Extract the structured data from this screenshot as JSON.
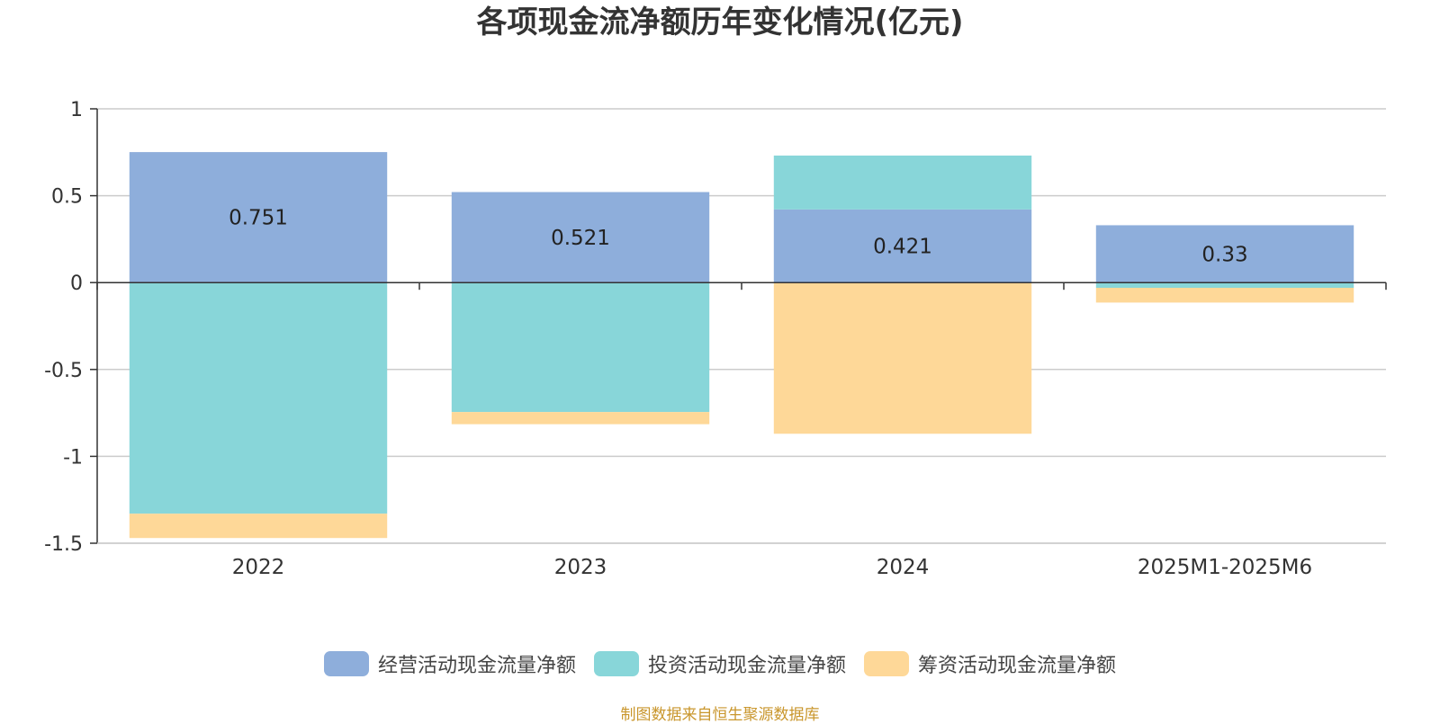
{
  "title": "各项现金流净额历年变化情况(亿元)",
  "source": "制图数据来自恒生聚源数据库",
  "colors": {
    "operating": "#8eaedb",
    "investing": "#88d6d9",
    "financing": "#fed898",
    "axis": "#333333",
    "grid": "#cccccc",
    "tick_text": "#333333"
  },
  "chart_data": {
    "type": "bar",
    "stacked": true,
    "categories": [
      "2022",
      "2023",
      "2024",
      "2025M1-2025M6"
    ],
    "series": [
      {
        "name": "经营活动现金流量净额",
        "values": [
          0.751,
          0.521,
          0.421,
          0.33
        ],
        "labels": [
          "0.751",
          "0.521",
          "0.421",
          "0.33"
        ]
      },
      {
        "name": "投资活动现金流量净额",
        "values": [
          -1.33,
          -0.745,
          0.31,
          -0.03
        ]
      },
      {
        "name": "筹资活动现金流量净额",
        "values": [
          -0.14,
          -0.07,
          -0.87,
          -0.085
        ]
      }
    ],
    "ylim": [
      -1.5,
      1
    ],
    "yticks": [
      1,
      0.5,
      0,
      -0.5,
      -1,
      -1.5
    ],
    "ytick_labels": [
      "1",
      "0.5",
      "0",
      "-0.5",
      "-1",
      "-1.5"
    ],
    "grid": true,
    "legend_position": "bottom"
  }
}
